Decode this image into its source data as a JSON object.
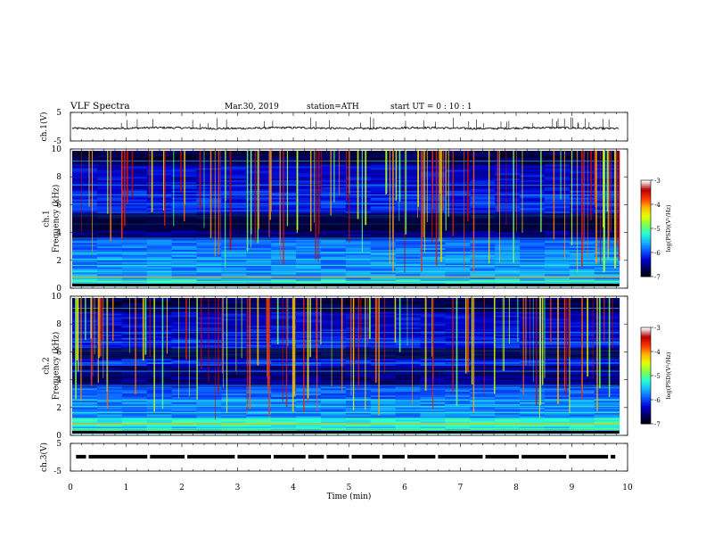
{
  "header": {
    "title": "VLF  Spectra",
    "date": "Mar.30, 2019",
    "station": "station=ATH",
    "start": "start  UT  =    0  : 10 : 1"
  },
  "chart_data": [
    {
      "type": "line",
      "name": "ch1-waveform",
      "ylabel": "ch.1(V)",
      "yticks": [
        "5",
        "-5"
      ],
      "ylim": [
        -5,
        5
      ],
      "xlim": [
        0,
        10
      ],
      "baseline": -0.5,
      "noise_amplitude": 0.35
    },
    {
      "type": "heatmap",
      "name": "ch1-spectrogram",
      "ylabel": "ch.1\nFrequency  (kHz)",
      "ylabel_lines": [
        "ch.1",
        "Frequency  (kHz)"
      ],
      "yticks": [
        "0",
        "2",
        "4",
        "6",
        "8",
        "10"
      ],
      "ylim": [
        0,
        10
      ],
      "xlim": [
        0,
        9.85
      ],
      "colorbar": {
        "label": "log(PSD)(V²/Hz)",
        "ticks": [
          "-3",
          "-4",
          "-5",
          "-6",
          "-7"
        ],
        "range": [
          -7,
          -3
        ]
      },
      "colormap": [
        "#000000",
        "#00005a",
        "#0000d0",
        "#0a55ff",
        "#14b4ff",
        "#28ffd2",
        "#7cff50",
        "#e6ff00",
        "#ffb400",
        "#ff3200",
        "#b40000",
        "#ffffff"
      ]
    },
    {
      "type": "heatmap",
      "name": "ch2-spectrogram",
      "ylabel": "ch.2\nFrequency  (kHz)",
      "ylabel_lines": [
        "ch.2",
        "Frequency  (kHz)"
      ],
      "yticks": [
        "0",
        "2",
        "4",
        "6",
        "8",
        "10"
      ],
      "ylim": [
        0,
        10
      ],
      "xlim": [
        0,
        9.85
      ],
      "colorbar": {
        "label": "log(PSD)(V²/Hz)",
        "ticks": [
          "-3",
          "-4",
          "-5",
          "-6",
          "-7"
        ],
        "range": [
          -7,
          -3
        ]
      }
    },
    {
      "type": "line",
      "name": "ch3-waveform",
      "ylabel": "ch.3(V)",
      "yticks": [
        "5",
        "-5"
      ],
      "ylim": [
        -5,
        5
      ],
      "xlim": [
        0,
        10
      ],
      "baseline": 0.2,
      "gaps_min": [
        0.28,
        1.38,
        2.05,
        2.95,
        3.6,
        4.22,
        4.55,
        5.0,
        5.55,
        6.0,
        6.55,
        7.4,
        8.05,
        8.9,
        9.65
      ]
    }
  ],
  "xaxis": {
    "label": "Time  (min)",
    "ticks": [
      "0",
      "1",
      "2",
      "3",
      "4",
      "5",
      "6",
      "7",
      "8",
      "9",
      "10"
    ],
    "range": [
      0,
      10
    ]
  }
}
